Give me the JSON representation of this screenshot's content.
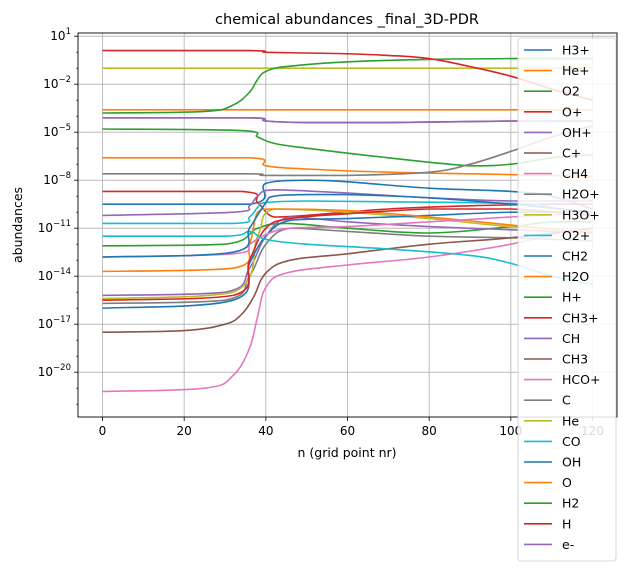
{
  "chart_data": {
    "type": "line",
    "title": "chemical abundances _final_3D-PDR",
    "xlabel": "n (grid point nr)",
    "ylabel": "abundances",
    "x_range": [
      -6,
      126
    ],
    "y_range_log10": [
      -22.8,
      1.2
    ],
    "yscale": "log",
    "grid": true,
    "legend_position": "right",
    "x_ticks": [
      0,
      20,
      40,
      60,
      80,
      100,
      120
    ],
    "x_tick_labels": [
      "0",
      "20",
      "40",
      "60",
      "80",
      "100",
      "120"
    ],
    "y_ticks_log10": [
      1,
      -2,
      -5,
      -8,
      -11,
      -14,
      -17,
      -20
    ],
    "y_tick_labels": [
      {
        "base": "10",
        "exp": "1"
      },
      {
        "base": "10",
        "exp": "−2"
      },
      {
        "base": "10",
        "exp": "−5"
      },
      {
        "base": "10",
        "exp": "−8"
      },
      {
        "base": "10",
        "exp": "−11"
      },
      {
        "base": "10",
        "exp": "−14"
      },
      {
        "base": "10",
        "exp": "−17"
      },
      {
        "base": "10",
        "exp": "−20"
      }
    ],
    "series": [
      {
        "name": "H3+",
        "color": "#1f77b4",
        "points": [
          [
            0,
            -9.5
          ],
          [
            36,
            -9.5
          ],
          [
            40,
            -8.2
          ],
          [
            50,
            -8.0
          ],
          [
            60,
            -8.1
          ],
          [
            80,
            -8.5
          ],
          [
            100,
            -8.7
          ],
          [
            110,
            -9.0
          ],
          [
            120,
            -9.8
          ]
        ]
      },
      {
        "name": "He+",
        "color": "#ff7f0e",
        "points": [
          [
            0,
            -6.6
          ],
          [
            36,
            -6.6
          ],
          [
            40,
            -7.1
          ],
          [
            50,
            -7.3
          ],
          [
            70,
            -7.5
          ],
          [
            90,
            -7.6
          ],
          [
            110,
            -7.7
          ],
          [
            120,
            -7.8
          ]
        ]
      },
      {
        "name": "O2",
        "color": "#2ca02c",
        "points": [
          [
            0,
            -12.1
          ],
          [
            30,
            -12.0
          ],
          [
            38,
            -11.0
          ],
          [
            45,
            -10.7
          ],
          [
            60,
            -11.0
          ],
          [
            80,
            -11.3
          ],
          [
            100,
            -10.9
          ],
          [
            110,
            -10.6
          ],
          [
            120,
            -10.6
          ]
        ]
      },
      {
        "name": "O+",
        "color": "#d62728",
        "points": [
          [
            0,
            -8.7
          ],
          [
            34,
            -8.7
          ],
          [
            38,
            -9.4
          ],
          [
            42,
            -10.3
          ],
          [
            50,
            -10.2
          ],
          [
            70,
            -9.8
          ],
          [
            90,
            -9.6
          ],
          [
            110,
            -9.5
          ],
          [
            120,
            -9.5
          ]
        ]
      },
      {
        "name": "OH+",
        "color": "#9467bd",
        "points": [
          [
            0,
            -15.2
          ],
          [
            30,
            -15.0
          ],
          [
            36,
            -13.5
          ],
          [
            40,
            -11.5
          ],
          [
            46,
            -10.3
          ],
          [
            60,
            -10.6
          ],
          [
            80,
            -10.9
          ],
          [
            100,
            -11.1
          ],
          [
            120,
            -11.3
          ]
        ]
      },
      {
        "name": "C+",
        "color": "#8c564b",
        "points": [
          [
            0,
            -4.1
          ],
          [
            36,
            -4.1
          ],
          [
            40,
            -4.3
          ],
          [
            50,
            -4.4
          ],
          [
            70,
            -4.4
          ],
          [
            100,
            -4.3
          ],
          [
            120,
            -4.3
          ]
        ]
      },
      {
        "name": "CH4",
        "color": "#e377c2",
        "points": [
          [
            0,
            -21.2
          ],
          [
            25,
            -21.0
          ],
          [
            32,
            -20.2
          ],
          [
            36,
            -18.5
          ],
          [
            38,
            -16.5
          ],
          [
            40,
            -14.7
          ],
          [
            45,
            -13.8
          ],
          [
            60,
            -13.3
          ],
          [
            80,
            -12.8
          ],
          [
            100,
            -12.0
          ],
          [
            110,
            -11.4
          ],
          [
            120,
            -11.0
          ]
        ]
      },
      {
        "name": "H2O+",
        "color": "#7f7f7f",
        "points": [
          [
            0,
            -15.7
          ],
          [
            30,
            -15.5
          ],
          [
            36,
            -14.0
          ],
          [
            40,
            -12.0
          ],
          [
            46,
            -11.0
          ],
          [
            60,
            -11.2
          ],
          [
            80,
            -11.5
          ],
          [
            100,
            -11.6
          ],
          [
            120,
            -11.8
          ]
        ]
      },
      {
        "name": "H3O+",
        "color": "#bcbd22",
        "points": [
          [
            0,
            -15.4
          ],
          [
            32,
            -15.0
          ],
          [
            38,
            -11.5
          ],
          [
            42,
            -9.8
          ],
          [
            60,
            -10.0
          ],
          [
            80,
            -10.4
          ],
          [
            100,
            -10.9
          ],
          [
            120,
            -11.2
          ]
        ]
      },
      {
        "name": "O2+",
        "color": "#17becf",
        "points": [
          [
            0,
            -10.7
          ],
          [
            32,
            -10.7
          ],
          [
            36,
            -10.3
          ],
          [
            38,
            -9.7
          ],
          [
            40,
            -9.4
          ],
          [
            50,
            -9.3
          ],
          [
            70,
            -9.35
          ],
          [
            90,
            -9.4
          ],
          [
            105,
            -9.5
          ],
          [
            110,
            -9.7
          ],
          [
            120,
            -10.2
          ]
        ]
      },
      {
        "name": "CH2",
        "color": "#1f77b4",
        "points": [
          [
            0,
            -16.0
          ],
          [
            32,
            -15.5
          ],
          [
            36,
            -13.2
          ],
          [
            40,
            -11.5
          ],
          [
            46,
            -10.5
          ],
          [
            60,
            -10.4
          ],
          [
            80,
            -10.2
          ],
          [
            100,
            -10.0
          ],
          [
            120,
            -10.0
          ]
        ]
      },
      {
        "name": "H2O",
        "color": "#ff7f0e",
        "points": [
          [
            0,
            -13.7
          ],
          [
            32,
            -13.5
          ],
          [
            36,
            -12.0
          ],
          [
            38,
            -10.0
          ],
          [
            42,
            -9.8
          ],
          [
            60,
            -9.9
          ],
          [
            80,
            -10.3
          ],
          [
            100,
            -10.8
          ],
          [
            120,
            -11.3
          ]
        ]
      },
      {
        "name": "H+",
        "color": "#2ca02c",
        "points": [
          [
            0,
            -4.8
          ],
          [
            34,
            -4.9
          ],
          [
            38,
            -5.3
          ],
          [
            42,
            -5.7
          ],
          [
            50,
            -6.0
          ],
          [
            70,
            -6.6
          ],
          [
            90,
            -7.1
          ],
          [
            100,
            -7.0
          ],
          [
            110,
            -6.6
          ],
          [
            120,
            -6.4
          ]
        ]
      },
      {
        "name": "CH3+",
        "color": "#d62728",
        "points": [
          [
            0,
            -15.5
          ],
          [
            32,
            -15.2
          ],
          [
            36,
            -13.0
          ],
          [
            40,
            -11.0
          ],
          [
            46,
            -10.4
          ],
          [
            60,
            -10.1
          ],
          [
            80,
            -9.8
          ],
          [
            100,
            -9.8
          ],
          [
            120,
            -10.2
          ]
        ]
      },
      {
        "name": "CH",
        "color": "#9467bd",
        "points": [
          [
            0,
            -10.2
          ],
          [
            32,
            -10.0
          ],
          [
            36,
            -9.6
          ],
          [
            38,
            -9.0
          ],
          [
            42,
            -8.6
          ],
          [
            60,
            -8.8
          ],
          [
            80,
            -9.1
          ],
          [
            100,
            -9.3
          ],
          [
            120,
            -9.3
          ]
        ]
      },
      {
        "name": "CH3",
        "color": "#8c564b",
        "points": [
          [
            0,
            -17.5
          ],
          [
            20,
            -17.4
          ],
          [
            30,
            -17.0
          ],
          [
            34,
            -16.4
          ],
          [
            37,
            -15.3
          ],
          [
            40,
            -13.8
          ],
          [
            46,
            -13.0
          ],
          [
            60,
            -12.6
          ],
          [
            80,
            -12.0
          ],
          [
            100,
            -11.6
          ],
          [
            120,
            -11.0
          ]
        ]
      },
      {
        "name": "HCO+",
        "color": "#e377c2",
        "points": [
          [
            0,
            -12.8
          ],
          [
            32,
            -12.6
          ],
          [
            36,
            -12.0
          ],
          [
            40,
            -11.4
          ],
          [
            46,
            -11.0
          ],
          [
            60,
            -10.9
          ],
          [
            80,
            -10.6
          ],
          [
            100,
            -10.3
          ],
          [
            120,
            -10.0
          ]
        ]
      },
      {
        "name": "C",
        "color": "#7f7f7f",
        "points": [
          [
            0,
            -7.6
          ],
          [
            36,
            -7.6
          ],
          [
            40,
            -7.7
          ],
          [
            60,
            -7.7
          ],
          [
            80,
            -7.5
          ],
          [
            90,
            -7.0
          ],
          [
            100,
            -6.2
          ],
          [
            110,
            -5.3
          ],
          [
            120,
            -4.6
          ]
        ]
      },
      {
        "name": "He",
        "color": "#bcbd22",
        "points": [
          [
            0,
            -1.0
          ],
          [
            60,
            -1.0
          ],
          [
            120,
            -1.0
          ]
        ]
      },
      {
        "name": "CO",
        "color": "#17becf",
        "points": [
          [
            0,
            -11.5
          ],
          [
            30,
            -11.5
          ],
          [
            36,
            -11.2
          ],
          [
            40,
            -11.7
          ],
          [
            50,
            -12.0
          ],
          [
            70,
            -12.3
          ],
          [
            90,
            -12.7
          ],
          [
            100,
            -13.2
          ],
          [
            110,
            -14.0
          ],
          [
            120,
            -14.5
          ]
        ]
      },
      {
        "name": "OH",
        "color": "#1f77b4",
        "points": [
          [
            0,
            -12.8
          ],
          [
            32,
            -12.5
          ],
          [
            36,
            -11.0
          ],
          [
            40,
            -9.4
          ],
          [
            42,
            -9.0
          ],
          [
            50,
            -8.9
          ],
          [
            60,
            -8.9
          ],
          [
            80,
            -9.1
          ],
          [
            100,
            -9.5
          ],
          [
            120,
            -10.0
          ]
        ]
      },
      {
        "name": "O",
        "color": "#ff7f0e",
        "points": [
          [
            0,
            -3.6
          ],
          [
            60,
            -3.6
          ],
          [
            120,
            -3.6
          ]
        ]
      },
      {
        "name": "H2",
        "color": "#2ca02c",
        "points": [
          [
            0,
            -3.8
          ],
          [
            25,
            -3.7
          ],
          [
            32,
            -3.3
          ],
          [
            36,
            -2.5
          ],
          [
            38,
            -1.7
          ],
          [
            40,
            -1.2
          ],
          [
            45,
            -0.9
          ],
          [
            60,
            -0.6
          ],
          [
            80,
            -0.45
          ],
          [
            100,
            -0.4
          ],
          [
            120,
            -0.4
          ]
        ]
      },
      {
        "name": "H",
        "color": "#d62728",
        "points": [
          [
            0,
            0.1
          ],
          [
            36,
            0.1
          ],
          [
            40,
            0.0
          ],
          [
            50,
            -0.05
          ],
          [
            60,
            -0.1
          ],
          [
            70,
            -0.2
          ],
          [
            80,
            -0.4
          ],
          [
            90,
            -0.9
          ],
          [
            100,
            -1.5
          ],
          [
            110,
            -2.3
          ],
          [
            120,
            -3.0
          ]
        ]
      },
      {
        "name": "e-",
        "color": "#9467bd",
        "points": [
          [
            0,
            -4.1
          ],
          [
            36,
            -4.1
          ],
          [
            40,
            -4.3
          ],
          [
            50,
            -4.4
          ],
          [
            70,
            -4.4
          ],
          [
            100,
            -4.3
          ],
          [
            120,
            -4.3
          ]
        ]
      }
    ]
  }
}
